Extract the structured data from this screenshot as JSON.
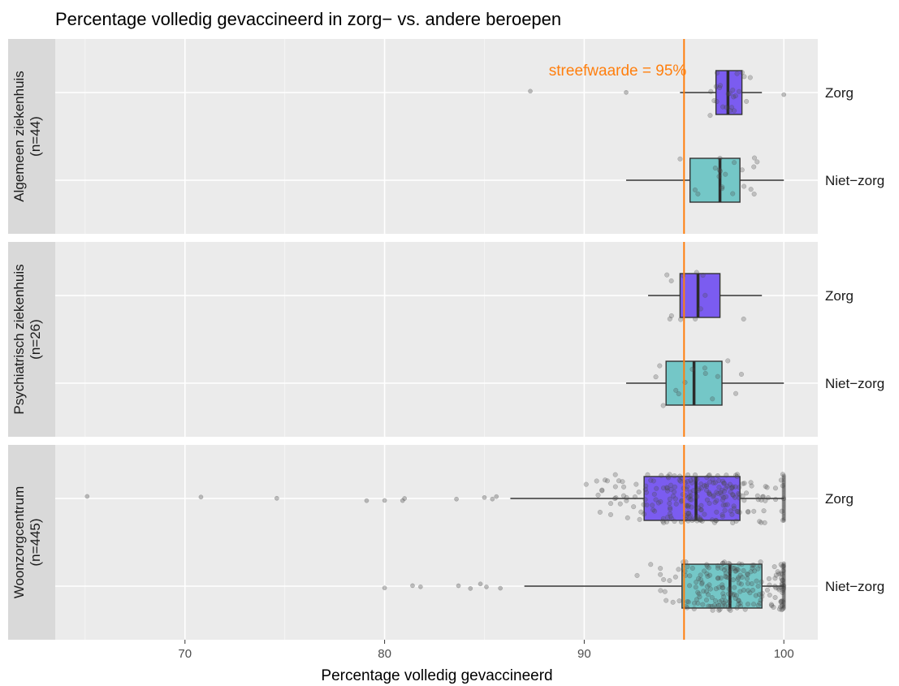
{
  "chart_data": {
    "type": "boxplot",
    "title": "Percentage volledig gevaccineerd in zorg− vs. andere beroepen",
    "xlabel": "Percentage volledig gevaccineerd",
    "xlim": [
      63.5,
      101.7
    ],
    "x_ticks": [
      70,
      80,
      90,
      100
    ],
    "grid": true,
    "reference_line": {
      "x": 95,
      "label": "streefwaarde = 95%",
      "color": "#ff7f0e"
    },
    "groups": [
      "Zorg",
      "Niet−zorg"
    ],
    "colors": {
      "Zorg": "#7b5cf0",
      "Niet−zorg": "#74c7c7"
    },
    "facets": [
      {
        "label": "Algemeen ziekenhuis",
        "n_label": "(n=44)",
        "boxes": [
          {
            "group": "Zorg",
            "whisker_low": 94.8,
            "q1": 96.6,
            "median": 97.2,
            "q3": 97.9,
            "whisker_high": 98.9,
            "outliers": [
              87.3,
              92.1,
              100
            ]
          },
          {
            "group": "Niet−zorg",
            "whisker_low": 92.1,
            "q1": 95.3,
            "median": 96.8,
            "q3": 97.8,
            "whisker_high": 100,
            "outliers": []
          }
        ]
      },
      {
        "label": "Psychiatrisch ziekenhuis",
        "n_label": "(n=26)",
        "boxes": [
          {
            "group": "Zorg",
            "whisker_low": 93.2,
            "q1": 94.8,
            "median": 95.7,
            "q3": 96.8,
            "whisker_high": 98.9,
            "outliers": []
          },
          {
            "group": "Niet−zorg",
            "whisker_low": 92.1,
            "q1": 94.1,
            "median": 95.5,
            "q3": 96.9,
            "whisker_high": 100,
            "outliers": []
          }
        ]
      },
      {
        "label": "Woonzorgcentrum",
        "n_label": "(n=445)",
        "boxes": [
          {
            "group": "Zorg",
            "whisker_low": 86.3,
            "q1": 93.0,
            "median": 95.6,
            "q3": 97.8,
            "whisker_high": 100,
            "outliers": [
              65.1,
              70.8,
              74.6,
              79.1,
              80.0,
              80.9,
              81.0,
              83.6,
              85.0,
              85.4,
              85.6
            ]
          },
          {
            "group": "Niet−zorg",
            "whisker_low": 87.0,
            "q1": 94.9,
            "median": 97.3,
            "q3": 98.9,
            "whisker_high": 100,
            "outliers": [
              80.0,
              81.4,
              81.8,
              83.7,
              84.3,
              84.8,
              85.1,
              85.8
            ]
          }
        ]
      }
    ]
  }
}
